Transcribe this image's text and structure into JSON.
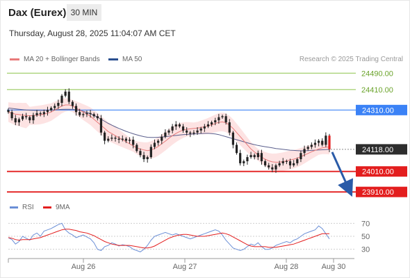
{
  "header": {
    "title": "Dax (Eurex)",
    "interval": "30 MIN",
    "datetime": "Thursday, August 28, 2025 11:04:07 AM CET"
  },
  "legend": {
    "ma20_label": "MA 20 + Bollinger Bands",
    "ma50_label": "MA 50",
    "credit": "Research © 2025 Trading Central",
    "rsi_label": "RSI",
    "rsi_ma_label": "9MA"
  },
  "colors": {
    "ma20": "#e87a7a",
    "bands_fill": "#fde0e0",
    "ma50": "#5a5e8c",
    "candle": "#222222",
    "resistance": "#8bc34a",
    "pivot": "#3b82f6",
    "support": "#e31e1e",
    "rsi": "#6b8fd6",
    "rsi_ma": "#e31e1e",
    "arrow": "#2a5ba8",
    "current_bg": "#2d2d2d"
  },
  "chart_data": [
    {
      "type": "candlestick",
      "ylim": [
        23880,
        24525
      ],
      "x_tick_labels": [
        "Aug 26",
        "Aug 27",
        "Aug 28",
        "Aug 30"
      ],
      "levels": [
        {
          "role": "resistance",
          "label": "24490.00",
          "value": 24490
        },
        {
          "role": "resistance",
          "label": "24410.00",
          "value": 24410
        },
        {
          "role": "pivot",
          "label": "24310.00",
          "value": 24310
        },
        {
          "role": "current",
          "label": "24118.00",
          "value": 24118
        },
        {
          "role": "support",
          "label": "24010.00",
          "value": 24010
        },
        {
          "role": "support",
          "label": "23910.00",
          "value": 23910
        }
      ],
      "close": [
        24300,
        24270,
        24250,
        24265,
        24280,
        24275,
        24260,
        24285,
        24295,
        24290,
        24300,
        24310,
        24320,
        24330,
        24345,
        24380,
        24400,
        24350,
        24330,
        24300,
        24285,
        24290,
        24295,
        24290,
        24280,
        24270,
        24200,
        24160,
        24170,
        24175,
        24170,
        24165,
        24170,
        24160,
        24165,
        24140,
        24110,
        24090,
        24070,
        24080,
        24130,
        24150,
        24160,
        24180,
        24200,
        24210,
        24230,
        24240,
        24230,
        24210,
        24200,
        24195,
        24200,
        24210,
        24220,
        24230,
        24240,
        24250,
        24260,
        24275,
        24280,
        24250,
        24200,
        24140,
        24100,
        24050,
        24060,
        24080,
        24090,
        24080,
        24100,
        24060,
        24040,
        24030,
        24020,
        24040,
        24050,
        24060,
        24060,
        24040,
        24050,
        24070,
        24100,
        24120,
        24130,
        24140,
        24150,
        24160,
        24140,
        24185,
        24118
      ],
      "ma20": [
        24300,
        24295,
        24290,
        24288,
        24285,
        24283,
        24282,
        24283,
        24285,
        24287,
        24290,
        24295,
        24300,
        24310,
        24320,
        24330,
        24335,
        24335,
        24330,
        24320,
        24310,
        24300,
        24290,
        24280,
        24265,
        24250,
        24235,
        24220,
        24205,
        24195,
        24185,
        24175,
        24165,
        24155,
        24145,
        24135,
        24125,
        24120,
        24115,
        24112,
        24115,
        24122,
        24132,
        24145,
        24158,
        24172,
        24185,
        24196,
        24205,
        24212,
        24216,
        24218,
        24220,
        24222,
        24225,
        24228,
        24232,
        24238,
        24244,
        24250,
        24252,
        24248,
        24236,
        24220,
        24200,
        24180,
        24160,
        24140,
        24120,
        24105,
        24092,
        24080,
        24070,
        24062,
        24057,
        24055,
        24056,
        24058,
        24062,
        24066,
        24070,
        24075,
        24082,
        24090,
        24098,
        24106,
        24113,
        24120,
        24125,
        24128,
        24130
      ],
      "ma50": [
        24320,
        24318,
        24316,
        24314,
        24312,
        24310,
        24309,
        24308,
        24308,
        24308,
        24308,
        24309,
        24310,
        24311,
        24312,
        24313,
        24314,
        24314,
        24313,
        24311,
        24308,
        24304,
        24298,
        24292,
        24284,
        24275,
        24265,
        24255,
        24245,
        24236,
        24228,
        24220,
        24213,
        24206,
        24200,
        24194,
        24189,
        24184,
        24180,
        24177,
        24176,
        24176,
        24177,
        24178,
        24180,
        24182,
        24184,
        24186,
        24188,
        24190,
        24191,
        24192,
        24193,
        24194,
        24195,
        24196,
        24196,
        24195,
        24193,
        24190,
        24185,
        24180,
        24175,
        24170,
        24165,
        24160,
        24155,
        24150,
        24145,
        24141,
        24137,
        24134,
        24131,
        24128,
        24125,
        24122,
        24120,
        24118,
        24116,
        24114,
        24113,
        24112,
        24111,
        24111,
        24112,
        24113,
        24114,
        24115,
        24116,
        24117,
        24118
      ]
    },
    {
      "type": "line",
      "title": "RSI",
      "ylim": [
        20,
        80
      ],
      "y_ticks": [
        70,
        50,
        30
      ],
      "series": [
        {
          "name": "RSI",
          "values": [
            48,
            45,
            38,
            42,
            50,
            47,
            44,
            52,
            55,
            50,
            58,
            60,
            62,
            65,
            68,
            70,
            60,
            55,
            52,
            48,
            50,
            52,
            49,
            46,
            40,
            30,
            28,
            34,
            36,
            40,
            38,
            35,
            37,
            36,
            34,
            30,
            28,
            26,
            30,
            36,
            44,
            50,
            52,
            54,
            56,
            54,
            52,
            54,
            52,
            50,
            48,
            46,
            48,
            50,
            52,
            54,
            56,
            58,
            60,
            58,
            52,
            44,
            38,
            32,
            30,
            28,
            30,
            34,
            38,
            36,
            40,
            34,
            30,
            30,
            32,
            36,
            38,
            40,
            42,
            40,
            44,
            46,
            50,
            54,
            56,
            58,
            60,
            66,
            62,
            54,
            46
          ]
        },
        {
          "name": "9MA",
          "values": [
            48,
            47,
            45,
            44,
            45,
            45,
            45,
            46,
            47,
            48,
            50,
            52,
            54,
            56,
            58,
            60,
            61,
            61,
            60,
            59,
            57,
            56,
            55,
            53,
            51,
            48,
            45,
            42,
            40,
            38,
            37,
            36,
            36,
            36,
            36,
            35,
            34,
            33,
            32,
            32,
            33,
            35,
            38,
            41,
            44,
            47,
            49,
            51,
            52,
            53,
            53,
            52,
            51,
            50,
            50,
            50,
            51,
            52,
            53,
            54,
            55,
            54,
            52,
            49,
            46,
            43,
            40,
            37,
            35,
            34,
            34,
            34,
            34,
            33,
            33,
            33,
            34,
            35,
            36,
            37,
            38,
            40,
            42,
            44,
            46,
            48,
            50,
            52,
            54,
            54,
            54
          ]
        }
      ]
    }
  ]
}
